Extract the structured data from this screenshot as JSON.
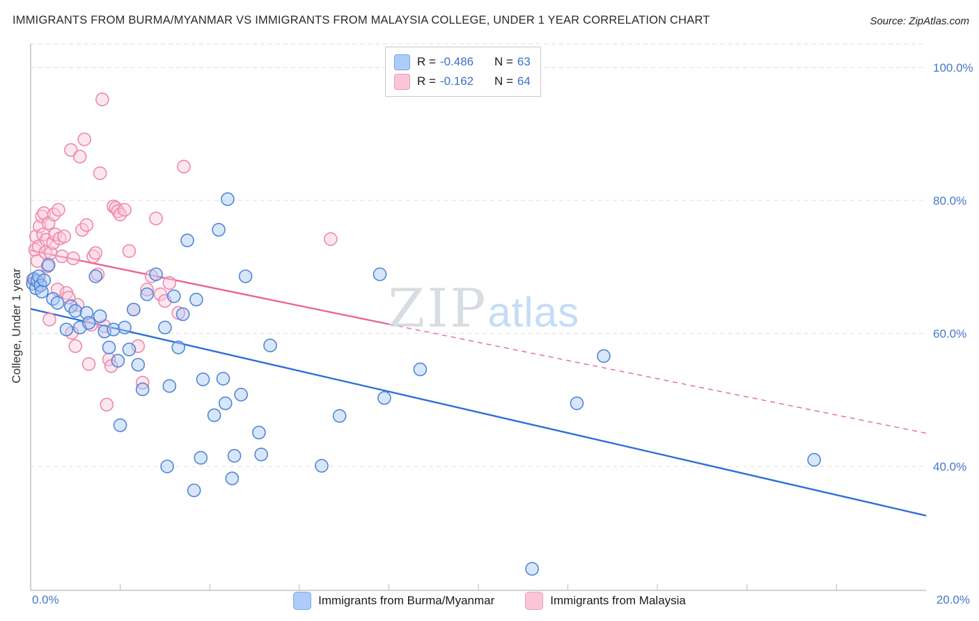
{
  "header": {
    "title": "IMMIGRANTS FROM BURMA/MYANMAR VS IMMIGRANTS FROM MALAYSIA COLLEGE, UNDER 1 YEAR CORRELATION CHART",
    "source": "Source: ZipAtlas.com"
  },
  "legend_box": {
    "rows": [
      {
        "r_text": "R =",
        "r_value": "-0.486",
        "n_text": "N =",
        "n_value": "63"
      },
      {
        "r_text": "R =",
        "r_value": "-0.162",
        "n_text": "N =",
        "n_value": "64"
      }
    ]
  },
  "axes": {
    "y_title": "College, Under 1 year",
    "x_min_label": "0.0%",
    "x_max_label": "20.0%"
  },
  "bottom_legend": [
    {
      "label": "Immigrants from Burma/Myanmar",
      "color": "#aecbfa"
    },
    {
      "label": "Immigrants from Malaysia",
      "color": "#f9c6d8"
    }
  ],
  "watermark": {
    "zip": "ZIP",
    "atlas": "atlas"
  },
  "chart_data": {
    "type": "scatter",
    "title": "IMMIGRANTS FROM BURMA/MYANMAR VS IMMIGRANTS FROM MALAYSIA COLLEGE, UNDER 1 YEAR CORRELATION CHART",
    "xlabel": "",
    "ylabel": "College, Under 1 year",
    "x_range": [
      0,
      20
    ],
    "y_range": [
      21.4,
      103.5
    ],
    "x_unit": "%",
    "y_unit": "%",
    "grid": "horizontal-dashed",
    "legend_position": "bottom-center",
    "x_ticks": [
      2,
      4,
      6,
      8,
      10,
      12,
      14,
      16,
      18
    ],
    "y_ticks": [
      {
        "value": 100,
        "label": "100.0%"
      },
      {
        "value": 80,
        "label": "80.0%"
      },
      {
        "value": 60,
        "label": "60.0%"
      },
      {
        "value": 40,
        "label": "40.0%"
      }
    ],
    "series": [
      {
        "name": "Immigrants from Burma/Myanmar",
        "R": -0.486,
        "N": 63,
        "fill": "#a8c8f8",
        "stroke": "#4f86d6",
        "points": [
          [
            0.05,
            67.5
          ],
          [
            0.08,
            68.2
          ],
          [
            0.12,
            66.8
          ],
          [
            0.15,
            67.9
          ],
          [
            0.18,
            68.6
          ],
          [
            0.22,
            67.2
          ],
          [
            0.25,
            66.3
          ],
          [
            0.3,
            68.0
          ],
          [
            0.4,
            70.3
          ],
          [
            0.5,
            65.2
          ],
          [
            0.6,
            64.6
          ],
          [
            0.8,
            60.6
          ],
          [
            0.9,
            64.1
          ],
          [
            1.0,
            63.4
          ],
          [
            1.1,
            60.9
          ],
          [
            1.25,
            63.1
          ],
          [
            1.3,
            61.6
          ],
          [
            1.45,
            68.6
          ],
          [
            1.55,
            62.6
          ],
          [
            1.65,
            60.3
          ],
          [
            1.75,
            57.9
          ],
          [
            1.85,
            60.6
          ],
          [
            1.95,
            55.9
          ],
          [
            2.0,
            46.2
          ],
          [
            2.1,
            60.9
          ],
          [
            2.2,
            57.6
          ],
          [
            2.3,
            63.6
          ],
          [
            2.4,
            55.3
          ],
          [
            2.5,
            51.6
          ],
          [
            2.6,
            65.9
          ],
          [
            2.8,
            68.9
          ],
          [
            3.0,
            60.9
          ],
          [
            3.05,
            40.0
          ],
          [
            3.1,
            52.1
          ],
          [
            3.2,
            65.6
          ],
          [
            3.3,
            57.9
          ],
          [
            3.4,
            62.9
          ],
          [
            3.5,
            74.0
          ],
          [
            3.65,
            36.4
          ],
          [
            3.7,
            65.1
          ],
          [
            3.8,
            41.3
          ],
          [
            3.85,
            53.1
          ],
          [
            4.1,
            47.7
          ],
          [
            4.2,
            75.6
          ],
          [
            4.3,
            53.2
          ],
          [
            4.35,
            49.5
          ],
          [
            4.4,
            80.2
          ],
          [
            4.5,
            38.2
          ],
          [
            4.55,
            41.6
          ],
          [
            4.7,
            50.8
          ],
          [
            4.8,
            68.6
          ],
          [
            5.1,
            45.1
          ],
          [
            5.15,
            41.8
          ],
          [
            5.35,
            58.2
          ],
          [
            6.5,
            40.1
          ],
          [
            6.9,
            47.6
          ],
          [
            7.8,
            68.9
          ],
          [
            7.9,
            50.3
          ],
          [
            8.7,
            54.6
          ],
          [
            11.2,
            24.6
          ],
          [
            12.2,
            49.5
          ],
          [
            12.8,
            56.6
          ],
          [
            17.5,
            41.0
          ]
        ]
      },
      {
        "name": "Immigrants from Malaysia",
        "R": -0.162,
        "N": 64,
        "fill": "#fbc9db",
        "stroke": "#ef87ab",
        "points": [
          [
            0.05,
            68.1
          ],
          [
            0.1,
            72.6
          ],
          [
            0.12,
            74.6
          ],
          [
            0.15,
            70.9
          ],
          [
            0.18,
            73.1
          ],
          [
            0.2,
            76.1
          ],
          [
            0.22,
            67.4
          ],
          [
            0.25,
            77.6
          ],
          [
            0.28,
            74.9
          ],
          [
            0.3,
            78.1
          ],
          [
            0.33,
            72.2
          ],
          [
            0.35,
            74.1
          ],
          [
            0.38,
            70.1
          ],
          [
            0.4,
            76.6
          ],
          [
            0.42,
            62.1
          ],
          [
            0.45,
            72.1
          ],
          [
            0.5,
            73.6
          ],
          [
            0.52,
            77.9
          ],
          [
            0.55,
            74.9
          ],
          [
            0.6,
            66.6
          ],
          [
            0.62,
            78.6
          ],
          [
            0.65,
            74.3
          ],
          [
            0.7,
            71.6
          ],
          [
            0.75,
            74.6
          ],
          [
            0.8,
            66.1
          ],
          [
            0.85,
            65.4
          ],
          [
            0.9,
            87.6
          ],
          [
            0.92,
            60.1
          ],
          [
            0.95,
            71.3
          ],
          [
            1.0,
            58.1
          ],
          [
            1.05,
            64.3
          ],
          [
            1.1,
            86.6
          ],
          [
            1.15,
            75.6
          ],
          [
            1.2,
            89.2
          ],
          [
            1.25,
            76.3
          ],
          [
            1.3,
            55.4
          ],
          [
            1.35,
            61.3
          ],
          [
            1.4,
            71.6
          ],
          [
            1.45,
            72.1
          ],
          [
            1.5,
            68.9
          ],
          [
            1.55,
            84.1
          ],
          [
            1.6,
            95.2
          ],
          [
            1.65,
            61.1
          ],
          [
            1.7,
            49.3
          ],
          [
            1.75,
            56.1
          ],
          [
            1.8,
            55.1
          ],
          [
            1.85,
            79.1
          ],
          [
            1.9,
            78.9
          ],
          [
            1.95,
            78.4
          ],
          [
            2.0,
            77.9
          ],
          [
            2.1,
            78.6
          ],
          [
            2.2,
            72.4
          ],
          [
            2.3,
            63.6
          ],
          [
            2.4,
            58.1
          ],
          [
            2.5,
            52.6
          ],
          [
            2.6,
            66.6
          ],
          [
            2.7,
            68.6
          ],
          [
            2.8,
            77.3
          ],
          [
            2.9,
            65.9
          ],
          [
            3.0,
            64.9
          ],
          [
            3.1,
            67.6
          ],
          [
            3.3,
            63.1
          ],
          [
            3.42,
            85.1
          ],
          [
            6.7,
            74.2
          ]
        ]
      }
    ],
    "trend_lines": [
      {
        "series": "Immigrants from Burma/Myanmar",
        "color": "#2f6fd6",
        "style": "solid",
        "x": [
          0,
          20
        ],
        "y": [
          63.7,
          32.6
        ]
      },
      {
        "series": "Immigrants from Malaysia",
        "color": "#e8649a",
        "style": "solid",
        "x": [
          0,
          8.0
        ],
        "y": [
          72.5,
          61.4
        ]
      },
      {
        "series": "Immigrants from Malaysia",
        "color": "#e8649a",
        "style": "dashed",
        "x": [
          8.0,
          20
        ],
        "y": [
          61.4,
          45.0
        ]
      }
    ]
  }
}
